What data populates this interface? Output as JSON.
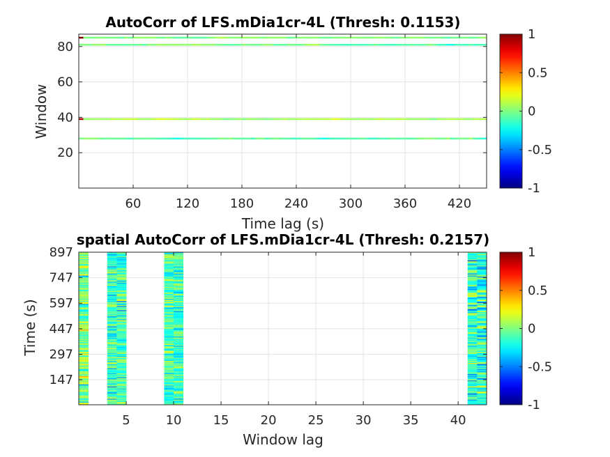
{
  "chart_data": [
    {
      "type": "heatmap",
      "title": "AutoCorr of LFS.mDia1cr-4L (Thresh: 0.1153)",
      "xlabel": "Time lag (s)",
      "ylabel": "Window",
      "xlim": [
        0,
        450
      ],
      "ylim": [
        0,
        87
      ],
      "xticks": [
        "60",
        "120",
        "180",
        "240",
        "300",
        "360",
        "420"
      ],
      "yticks": [
        "20",
        "40",
        "60",
        "80"
      ],
      "grid": true,
      "colorbar": {
        "min": -1,
        "max": 1,
        "ticks": [
          "1",
          "0.5",
          "0",
          "-0.5",
          "-1"
        ],
        "colormap": "jet"
      },
      "rows_with_data": [
        {
          "window": 28,
          "value_range": [
            -0.55,
            0.35
          ]
        },
        {
          "window": 39,
          "value_range": [
            -0.2,
            0.4
          ],
          "start_value": 0.9
        },
        {
          "window": 81,
          "value_range": [
            -0.45,
            0.35
          ]
        },
        {
          "window": 85,
          "value_range": [
            -0.3,
            0.3
          ],
          "start_value": 1.0
        }
      ]
    },
    {
      "type": "heatmap",
      "title": "spatial AutoCorr of LFS.mDia1cr-4L (Thresh: 0.2157)",
      "xlabel": "Window lag",
      "ylabel": "Time (s)",
      "xlim": [
        0,
        43
      ],
      "ylim": [
        0,
        897
      ],
      "xticks": [
        "5",
        "10",
        "15",
        "20",
        "25",
        "30",
        "35",
        "40"
      ],
      "yticks": [
        "147",
        "297",
        "447",
        "597",
        "747",
        "897"
      ],
      "grid": true,
      "colorbar": {
        "min": -1,
        "max": 1,
        "ticks": [
          "1",
          "0.5",
          "0",
          "-0.5",
          "-1"
        ],
        "colormap": "jet"
      },
      "columns_with_data": [
        {
          "lag_range": [
            0,
            1
          ],
          "value_range": [
            -0.5,
            0.5
          ]
        },
        {
          "lag_range": [
            3,
            5
          ],
          "value_range": [
            -0.6,
            0.3
          ]
        },
        {
          "lag_range": [
            9,
            11
          ],
          "value_range": [
            -0.6,
            0.3
          ]
        },
        {
          "lag_range": [
            41,
            43
          ],
          "value_range": [
            -0.7,
            0.35
          ]
        }
      ]
    }
  ]
}
